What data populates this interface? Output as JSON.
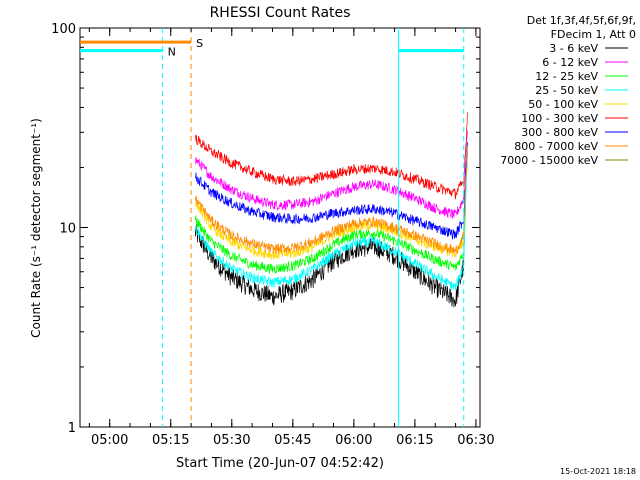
{
  "chart_data": {
    "type": "line",
    "title": "RHESSI Count Rates",
    "xlabel": "Start Time (20-Jun-07 04:52:42)",
    "ylabel": "Count Rate (s⁻¹ detector segment⁻¹)",
    "y_scale": "log",
    "ylim": [
      1,
      100
    ],
    "xlim": [
      "04:52:42",
      "06:31:00"
    ],
    "x_ticks": [
      "05:00",
      "05:15",
      "05:30",
      "05:45",
      "06:00",
      "06:15",
      "06:30"
    ],
    "y_ticks": [
      "1",
      "10",
      "100"
    ],
    "legend_title": [
      "Det 1f,3f,4f,5f,6f,9f,",
      "FDecim 1, Att 0"
    ],
    "legend_position": "right",
    "series": [
      {
        "name": "3 - 6 keV",
        "color": "#000000",
        "x": [
          "05:21",
          "05:25",
          "05:30",
          "05:35",
          "05:40",
          "05:45",
          "05:50",
          "05:55",
          "06:00",
          "06:05",
          "06:10",
          "06:15",
          "06:20",
          "06:25",
          "06:27",
          "06:28"
        ],
        "values": [
          9.5,
          7.0,
          5.6,
          4.9,
          4.5,
          4.8,
          5.5,
          6.8,
          7.8,
          8.0,
          7.2,
          6.0,
          5.0,
          4.3,
          6.5,
          30
        ]
      },
      {
        "name": "6 - 12 keV",
        "color": "#ff00ff",
        "x": [
          "05:21",
          "05:25",
          "05:30",
          "05:35",
          "05:40",
          "05:45",
          "05:50",
          "05:55",
          "06:00",
          "06:05",
          "06:10",
          "06:15",
          "06:20",
          "06:25",
          "06:27",
          "06:28"
        ],
        "values": [
          22,
          18,
          15.5,
          14,
          13,
          13,
          13.5,
          14.8,
          16,
          16.5,
          15.5,
          14,
          12.5,
          11.5,
          14,
          35
        ]
      },
      {
        "name": "12 - 25 keV",
        "color": "#00ff00",
        "x": [
          "05:21",
          "05:25",
          "05:30",
          "05:35",
          "05:40",
          "05:45",
          "05:50",
          "05:55",
          "06:00",
          "06:05",
          "06:10",
          "06:15",
          "06:20",
          "06:25",
          "06:27",
          "06:28"
        ],
        "values": [
          11,
          8.5,
          7.2,
          6.5,
          6.2,
          6.4,
          7,
          8.2,
          9.2,
          9.4,
          8.6,
          7.7,
          6.9,
          6.3,
          7.5,
          30
        ]
      },
      {
        "name": "25 - 50 keV",
        "color": "#00ffff",
        "x": [
          "05:21",
          "05:25",
          "05:30",
          "05:35",
          "05:40",
          "05:45",
          "05:50",
          "05:55",
          "06:00",
          "06:05",
          "06:10",
          "06:15",
          "06:20",
          "06:25",
          "06:27",
          "06:28"
        ],
        "values": [
          10,
          7.5,
          6.2,
          5.6,
          5.3,
          5.5,
          6.2,
          7.3,
          8.3,
          8.5,
          7.6,
          6.6,
          5.7,
          5.0,
          6.5,
          28
        ]
      },
      {
        "name": "50 - 100 keV",
        "color": "#ffd700",
        "x": [
          "05:21",
          "05:25",
          "05:30",
          "05:35",
          "05:40",
          "05:45",
          "05:50",
          "05:55",
          "06:00",
          "06:05",
          "06:10",
          "06:15",
          "06:20",
          "06:25",
          "06:27",
          "06:28"
        ],
        "values": [
          13.5,
          10,
          8.4,
          7.7,
          7.3,
          7.4,
          8,
          9.2,
          10.1,
          10.3,
          9.6,
          8.7,
          8,
          7.4,
          8.5,
          30
        ]
      },
      {
        "name": "100 - 300 keV",
        "color": "#ff0000",
        "x": [
          "05:21",
          "05:25",
          "05:30",
          "05:35",
          "05:40",
          "05:45",
          "05:50",
          "05:55",
          "06:00",
          "06:05",
          "06:10",
          "06:15",
          "06:20",
          "06:25",
          "06:27",
          "06:28"
        ],
        "values": [
          28,
          24,
          21,
          19,
          17.5,
          17,
          17.5,
          18.5,
          19.5,
          19.8,
          19,
          17.5,
          16,
          14.8,
          17,
          40
        ]
      },
      {
        "name": "300 - 800 keV",
        "color": "#0000ff",
        "x": [
          "05:21",
          "05:25",
          "05:30",
          "05:35",
          "05:40",
          "05:45",
          "05:50",
          "05:55",
          "06:00",
          "06:05",
          "06:10",
          "06:15",
          "06:20",
          "06:25",
          "06:27",
          "06:28"
        ],
        "values": [
          18,
          15,
          13.2,
          12,
          11.3,
          11,
          11.2,
          11.8,
          12.2,
          12.4,
          11.8,
          10.8,
          10,
          9.2,
          11,
          30
        ]
      },
      {
        "name": "800 - 7000 keV",
        "color": "#ff8c00",
        "x": [
          "05:21",
          "05:25",
          "05:30",
          "05:35",
          "05:40",
          "05:45",
          "05:50",
          "05:55",
          "06:00",
          "06:05",
          "06:10",
          "06:15",
          "06:20",
          "06:25",
          "06:27",
          "06:28"
        ],
        "values": [
          14,
          10.8,
          9.1,
          8.3,
          7.8,
          7.9,
          8.5,
          9.6,
          10.5,
          10.7,
          10,
          9.1,
          8.3,
          7.6,
          9,
          30
        ]
      },
      {
        "name": "7000 - 15000 keV",
        "color": "#808000",
        "x": [],
        "values": []
      }
    ],
    "annotations": [
      {
        "label": "S",
        "x": "05:20",
        "color": "#ff8c00",
        "level": 85,
        "bar_from": "04:52:42"
      },
      {
        "label": "N",
        "x": "05:13",
        "color": "#00ffff",
        "level": 77,
        "bar_from": "04:52:42"
      },
      {
        "label": "",
        "x": "06:27",
        "color": "#00ffff",
        "level": 77,
        "bar_from": "06:11"
      }
    ],
    "vlines": [
      {
        "x": "05:13",
        "color": "#00ffff",
        "style": "dashed"
      },
      {
        "x": "05:20",
        "color": "#ff8c00",
        "style": "dashed"
      },
      {
        "x": "06:11",
        "color": "#00ffff",
        "style": "solid"
      },
      {
        "x": "06:27",
        "color": "#00ffff",
        "style": "dashed"
      }
    ],
    "grid": false
  },
  "footer": {
    "timestamp": "15-Oct-2021 18:18"
  }
}
